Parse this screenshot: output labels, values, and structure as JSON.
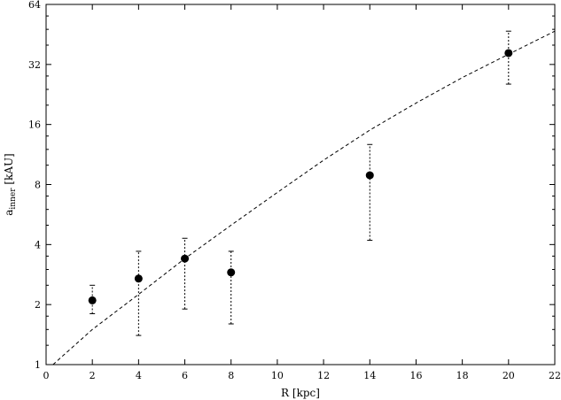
{
  "chart_data": {
    "type": "scatter",
    "xlabel": "R [kpc]",
    "ylabel": {
      "main": "a",
      "sub": "inner",
      "unit": " [kAU]"
    },
    "xlim": [
      0,
      22
    ],
    "ylim": [
      1,
      64
    ],
    "yscale": "log2",
    "grid": false,
    "x_ticks": [
      0,
      2,
      4,
      6,
      8,
      10,
      12,
      14,
      16,
      18,
      20,
      22
    ],
    "y_ticks": [
      1,
      2,
      4,
      8,
      16,
      32,
      64
    ],
    "series": [
      {
        "style": "points-with-errorbars",
        "points": [
          {
            "x": 2,
            "y": 2.1,
            "ylo": 1.8,
            "yhi": 2.5
          },
          {
            "x": 4,
            "y": 2.7,
            "ylo": 1.4,
            "yhi": 3.7
          },
          {
            "x": 6,
            "y": 3.4,
            "ylo": 1.9,
            "yhi": 4.3
          },
          {
            "x": 8,
            "y": 2.9,
            "ylo": 1.6,
            "yhi": 3.7
          },
          {
            "x": 14,
            "y": 8.9,
            "ylo": 4.2,
            "yhi": 12.7
          },
          {
            "x": 20,
            "y": 36.5,
            "ylo": 25.5,
            "yhi": 47.0
          }
        ]
      },
      {
        "style": "dashed-line",
        "points": [
          {
            "x": 0.3,
            "y": 1.0
          },
          {
            "x": 2,
            "y": 1.5
          },
          {
            "x": 4,
            "y": 2.25
          },
          {
            "x": 6,
            "y": 3.4
          },
          {
            "x": 8,
            "y": 5.0
          },
          {
            "x": 10,
            "y": 7.3
          },
          {
            "x": 12,
            "y": 10.6
          },
          {
            "x": 14,
            "y": 15.0
          },
          {
            "x": 16,
            "y": 20.5
          },
          {
            "x": 18,
            "y": 27.5
          },
          {
            "x": 20,
            "y": 36.0
          },
          {
            "x": 22,
            "y": 47.0
          }
        ]
      }
    ]
  }
}
